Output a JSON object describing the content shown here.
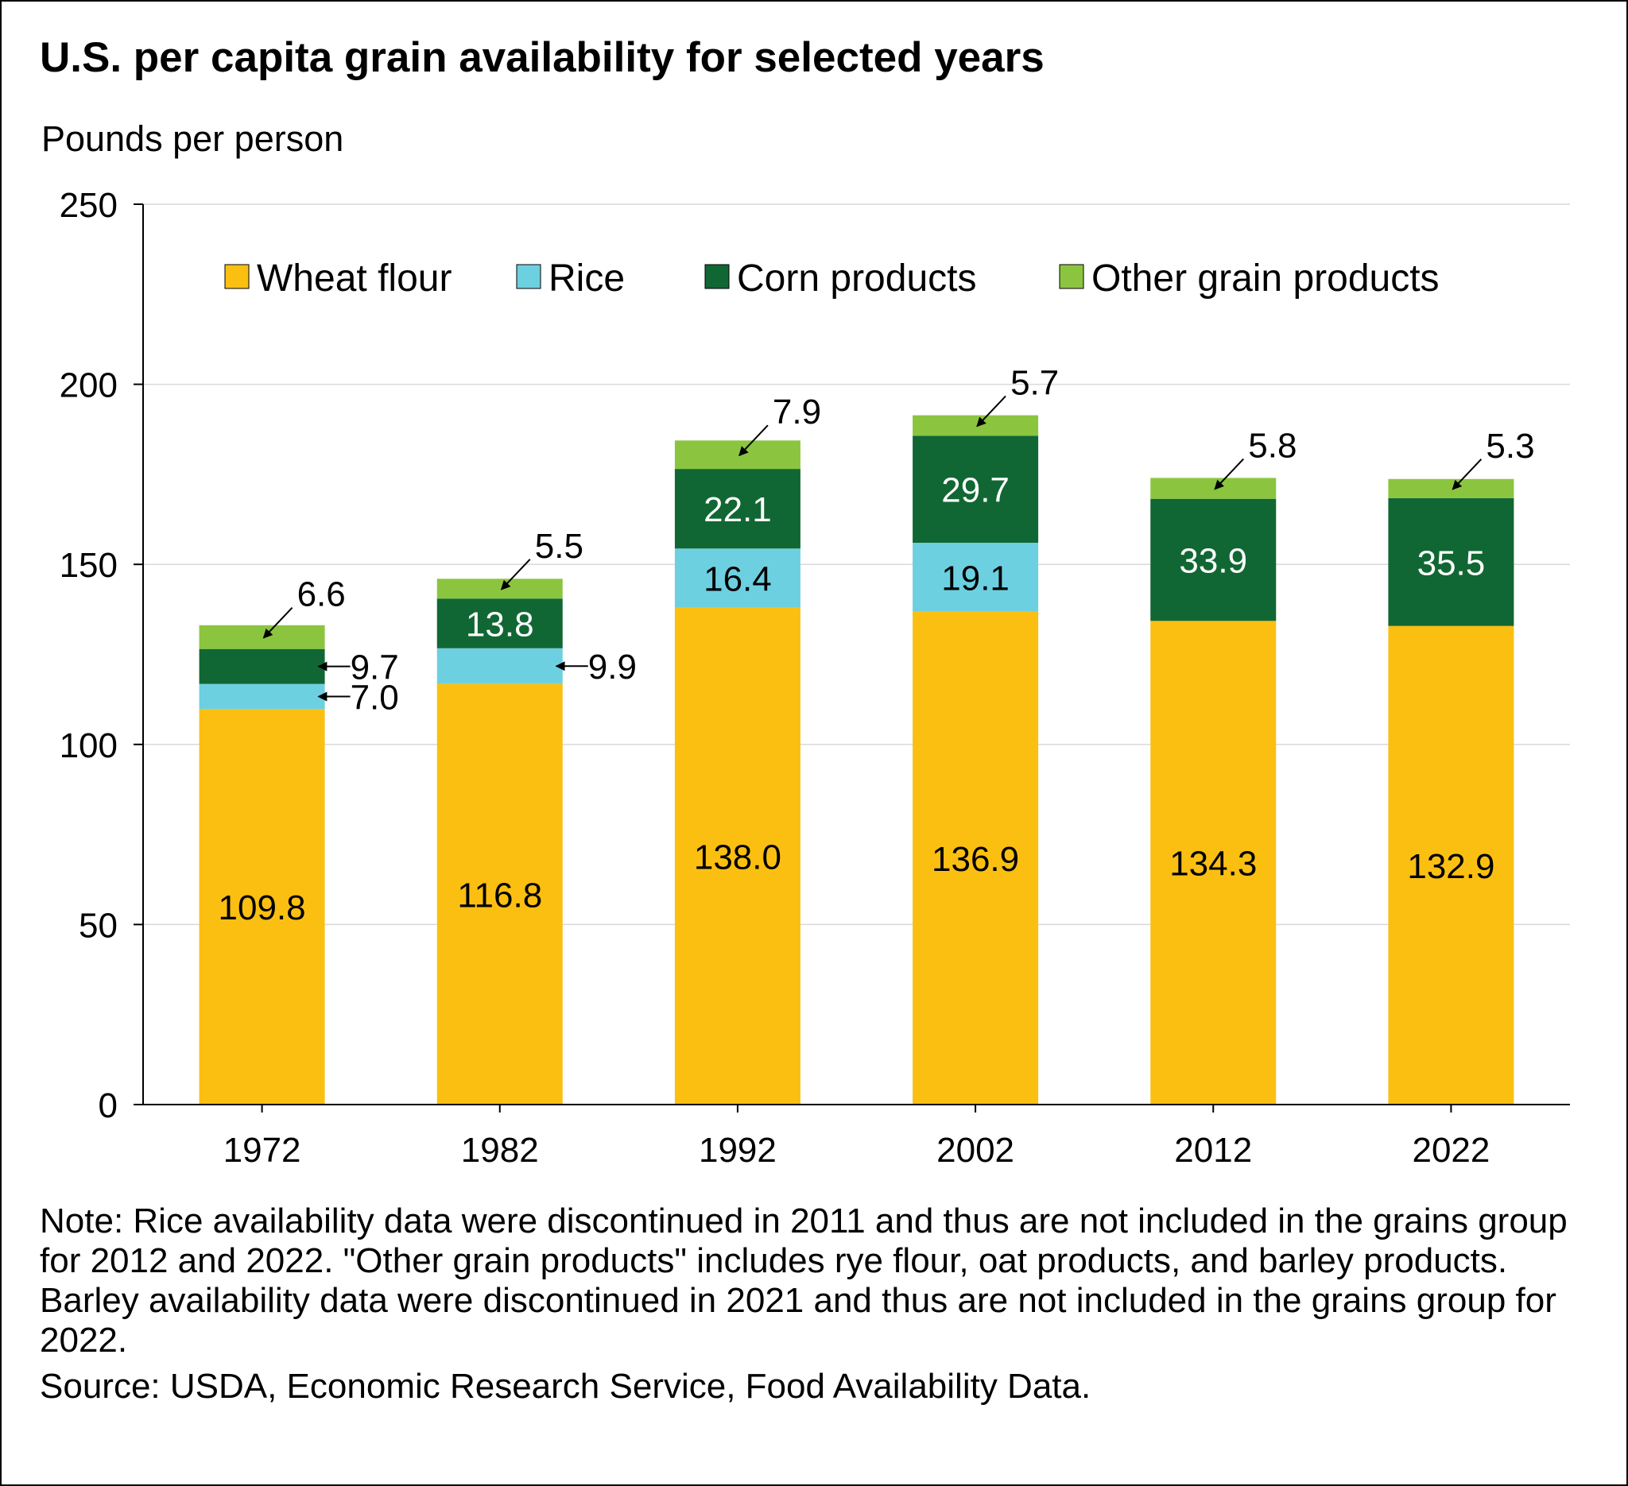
{
  "chart_data": {
    "type": "bar",
    "stacked": true,
    "title": "U.S. per capita grain availability for selected years",
    "ylabel": "Pounds per person",
    "xlabel": "",
    "ylim": [
      0,
      250
    ],
    "yticks": [
      0,
      50,
      100,
      150,
      200,
      250
    ],
    "grid": true,
    "legend_position": "top",
    "categories": [
      "1972",
      "1982",
      "1992",
      "2002",
      "2012",
      "2022"
    ],
    "series": [
      {
        "name": "Wheat flour",
        "color": "#FBBF12",
        "values": [
          109.8,
          116.8,
          138.0,
          136.9,
          134.3,
          132.9
        ],
        "labels": [
          "109.8",
          "116.8",
          "138.0",
          "136.9",
          "134.3",
          "132.9"
        ]
      },
      {
        "name": "Rice",
        "color": "#6DD0E0",
        "values": [
          7.0,
          9.9,
          16.4,
          19.1,
          null,
          null
        ],
        "labels": [
          "7.0",
          "9.9",
          "16.4",
          "19.1",
          null,
          null
        ]
      },
      {
        "name": "Corn products",
        "color": "#116733",
        "values": [
          9.7,
          13.8,
          22.1,
          29.7,
          33.9,
          35.5
        ],
        "labels": [
          "9.7",
          "13.8",
          "22.1",
          "29.7",
          "33.9",
          "35.5"
        ]
      },
      {
        "name": "Other grain products",
        "color": "#8BC53F",
        "values": [
          6.6,
          5.5,
          7.9,
          5.7,
          5.8,
          5.3
        ],
        "labels": [
          "6.6",
          "5.5",
          "7.9",
          "5.7",
          "5.8",
          "5.3"
        ]
      }
    ]
  },
  "notes": {
    "note": "Note: Rice availability data were discontinued in 2011 and thus are not included in the grains group for 2012 and 2022. \"Other grain products\" includes rye flour, oat products, and barley products. Barley availability data were discontinued in 2021 and thus are not included in the grains group for 2022.",
    "source": "Source: USDA, Economic Research Service, Food Availability Data."
  }
}
